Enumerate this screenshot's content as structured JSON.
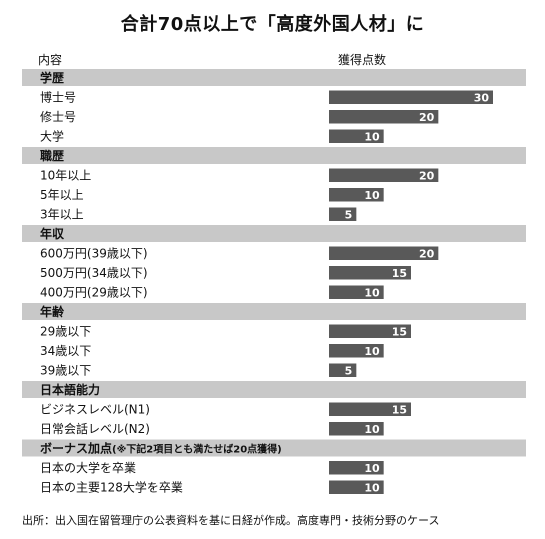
{
  "title": "合計70点以上で「高度外国人材」に",
  "header": {
    "content_label": "内容",
    "score_label": "獲得点数"
  },
  "source": "出所：出入国在留管理庁の公表資料を基に日経が作成。高度専門・技術分野のケース",
  "colors": {
    "section_bg": "#c8c8c8",
    "bar": "#595959",
    "bar_text": "#ffffff",
    "text": "#111111"
  },
  "chart_data": {
    "type": "bar",
    "orientation": "horizontal",
    "title": "合計70点以上で「高度外国人材」に",
    "xlabel": "獲得点数",
    "ylabel": "内容",
    "xlim": [
      0,
      30
    ],
    "grid": false,
    "sections": [
      {
        "name": "学歴",
        "items": [
          {
            "label": "博士号",
            "value": 30
          },
          {
            "label": "修士号",
            "value": 20
          },
          {
            "label": "大学",
            "value": 10
          }
        ]
      },
      {
        "name": "職歴",
        "items": [
          {
            "label": "10年以上",
            "value": 20
          },
          {
            "label": "5年以上",
            "value": 10
          },
          {
            "label": "3年以上",
            "value": 5
          }
        ]
      },
      {
        "name": "年収",
        "items": [
          {
            "label": "600万円(39歳以下)",
            "value": 20
          },
          {
            "label": "500万円(34歳以下)",
            "value": 15
          },
          {
            "label": "400万円(29歳以下)",
            "value": 10
          }
        ]
      },
      {
        "name": "年齢",
        "items": [
          {
            "label": "29歳以下",
            "value": 15
          },
          {
            "label": "34歳以下",
            "value": 10
          },
          {
            "label": "39歳以下",
            "value": 5
          }
        ]
      },
      {
        "name": "日本語能力",
        "items": [
          {
            "label": "ビジネスレベル(N1)",
            "value": 15
          },
          {
            "label": "日常会話レベル(N2)",
            "value": 10
          }
        ]
      },
      {
        "name": "ボーナス加点",
        "note": "(※下記2項目とも満たせば20点獲得)",
        "items": [
          {
            "label": "日本の大学を卒業",
            "value": 10
          },
          {
            "label": "日本の主要128大学を卒業",
            "value": 10
          }
        ]
      }
    ]
  }
}
